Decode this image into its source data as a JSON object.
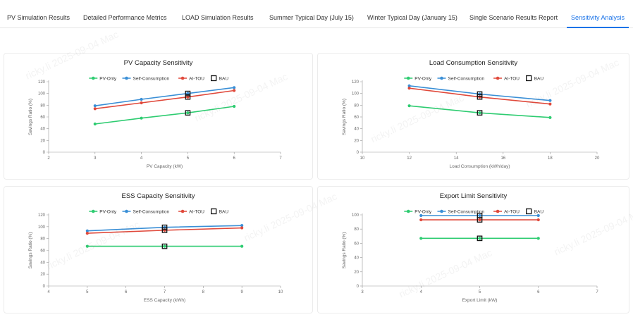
{
  "tabs": [
    {
      "label": "PV Simulation Results",
      "active": false
    },
    {
      "label": "Detailed Performance Metrics",
      "active": false
    },
    {
      "label": "LOAD Simulation Results",
      "active": false
    },
    {
      "label": "Summer Typical Day (July 15)",
      "active": false
    },
    {
      "label": "Winter Typical Day (January 15)",
      "active": false
    },
    {
      "label": "Single Scenario Results Report",
      "active": false
    },
    {
      "label": "Sensitivity Analysis",
      "active": true
    }
  ],
  "watermark": "ricky.li 2025-09-04 Mac",
  "colors": {
    "pv_only": "#2ecc71",
    "self_consumption": "#3a8fd6",
    "ai_tou": "#e0493b",
    "bau": "#111111",
    "accent": "#1a73e8"
  },
  "chart_data": [
    {
      "type": "line",
      "title": "PV Capacity Sensitivity",
      "xlabel": "PV Capacity (kW)",
      "ylabel": "Savings Ratio (%)",
      "xlim": [
        2,
        7
      ],
      "ylim": [
        0,
        120
      ],
      "xticks": [
        2,
        3,
        4,
        5,
        6,
        7
      ],
      "yticks": [
        0,
        20,
        40,
        60,
        80,
        100,
        120
      ],
      "legend": [
        "PV-Only",
        "Self-Consumption",
        "AI-TOU",
        "BAU"
      ],
      "series": [
        {
          "name": "PV-Only",
          "x": [
            3,
            4,
            5,
            6
          ],
          "values": [
            48,
            58,
            67,
            78
          ]
        },
        {
          "name": "Self-Consumption",
          "x": [
            3,
            4,
            5,
            6
          ],
          "values": [
            79,
            90,
            100,
            110
          ]
        },
        {
          "name": "AI-TOU",
          "x": [
            3,
            4,
            5,
            6
          ],
          "values": [
            74,
            84,
            94,
            105
          ]
        }
      ],
      "bau": {
        "x": 5,
        "values": [
          67,
          94,
          100
        ]
      }
    },
    {
      "type": "line",
      "title": "Load Consumption Sensitivity",
      "xlabel": "Load Consumption (kWh/day)",
      "ylabel": "Savings Ratio (%)",
      "xlim": [
        10,
        20
      ],
      "ylim": [
        0,
        120
      ],
      "xticks": [
        10,
        12,
        14,
        16,
        18,
        20
      ],
      "yticks": [
        0,
        20,
        40,
        60,
        80,
        100,
        120
      ],
      "legend": [
        "PV-Only",
        "Self-Consumption",
        "AI-TOU",
        "BAU"
      ],
      "series": [
        {
          "name": "PV-Only",
          "x": [
            12,
            15,
            18
          ],
          "values": [
            79,
            67,
            59
          ]
        },
        {
          "name": "Self-Consumption",
          "x": [
            12,
            15,
            18
          ],
          "values": [
            113,
            99,
            88
          ]
        },
        {
          "name": "AI-TOU",
          "x": [
            12,
            15,
            18
          ],
          "values": [
            109,
            94,
            82
          ]
        }
      ],
      "bau": {
        "x": 15,
        "values": [
          67,
          94,
          99
        ]
      }
    },
    {
      "type": "line",
      "title": "ESS Capacity Sensitivity",
      "xlabel": "ESS Capacity (kWh)",
      "ylabel": "Savings Ratio (%)",
      "xlim": [
        4,
        10
      ],
      "ylim": [
        0,
        120
      ],
      "xticks": [
        4,
        5,
        6,
        7,
        8,
        9,
        10
      ],
      "yticks": [
        0,
        20,
        40,
        60,
        80,
        100,
        120
      ],
      "legend": [
        "PV-Only",
        "Self-Consumption",
        "AI-TOU",
        "BAU"
      ],
      "series": [
        {
          "name": "PV-Only",
          "x": [
            5,
            7,
            9
          ],
          "values": [
            67,
            67,
            67
          ]
        },
        {
          "name": "Self-Consumption",
          "x": [
            5,
            7,
            9
          ],
          "values": [
            93,
            99,
            102
          ]
        },
        {
          "name": "AI-TOU",
          "x": [
            5,
            7,
            9
          ],
          "values": [
            89,
            94,
            98
          ]
        }
      ],
      "bau": {
        "x": 7,
        "values": [
          67,
          94,
          99
        ]
      }
    },
    {
      "type": "line",
      "title": "Export Limit Sensitivity",
      "xlabel": "Export Limit (kW)",
      "ylabel": "Savings Ratio (%)",
      "xlim": [
        3,
        7
      ],
      "ylim": [
        0,
        100
      ],
      "xticks": [
        3,
        4,
        5,
        6,
        7
      ],
      "yticks": [
        0,
        20,
        40,
        60,
        80,
        100
      ],
      "legend": [
        "PV-Only",
        "Self-Consumption",
        "AI-TOU",
        "BAU"
      ],
      "series": [
        {
          "name": "PV-Only",
          "x": [
            4,
            5,
            6
          ],
          "values": [
            67,
            67,
            67
          ]
        },
        {
          "name": "Self-Consumption",
          "x": [
            4,
            5,
            6
          ],
          "values": [
            99,
            99,
            99
          ]
        },
        {
          "name": "AI-TOU",
          "x": [
            4,
            5,
            6
          ],
          "values": [
            93,
            93,
            93
          ]
        }
      ],
      "bau": {
        "x": 5,
        "values": [
          67,
          93,
          99
        ]
      }
    }
  ]
}
